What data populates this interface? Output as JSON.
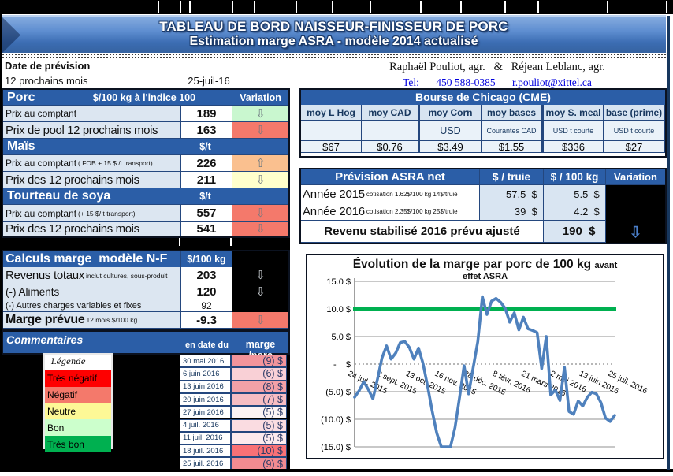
{
  "header": {
    "title_line1": "TABLEAU DE BORD NAISSEUR-FINISSEUR DE PORC",
    "title_line2": "Estimation marge ASRA - modèle 2014 actualisé"
  },
  "forecast": {
    "date_label": "Date de prévision",
    "period": "12 prochains mois",
    "date_value": "25-juil-16",
    "authors": "Raphaël Pouliot, agr.   &   Réjean Leblanc, agr.",
    "tel_label": "Tel:",
    "tel_number": "450 588-0385",
    "email": "r.pouliot@xittel.ca"
  },
  "price_table": {
    "variation_header": "Variation",
    "rows": [
      {
        "type": "head",
        "title": "Porc",
        "unit": "$/100 kg à l'indice 100"
      },
      {
        "type": "data",
        "size": "small",
        "label": "Prix au comptant",
        "note": "",
        "value": "189",
        "cell_color": "#C9F7CF",
        "arrow": "down"
      },
      {
        "type": "data",
        "size": "big",
        "label": "Prix de pool 12 prochains mois",
        "note": "",
        "value": "163",
        "cell_color": "#F4796B",
        "arrow": "down"
      },
      {
        "type": "head",
        "title": "Maïs",
        "unit": "$/t"
      },
      {
        "type": "data",
        "size": "small",
        "label": "Prix au comptant",
        "note": "( FOB + 15 $ /t transport)",
        "value": "226",
        "cell_color": "#FAC08F",
        "arrow": "up"
      },
      {
        "type": "data",
        "size": "big",
        "label": "Prix des 12 prochains mois",
        "note": "",
        "value": "211",
        "cell_color": "#FFFFCC",
        "arrow": "down"
      },
      {
        "type": "head",
        "title": "Tourteau de soya",
        "unit": "$/t"
      },
      {
        "type": "data",
        "size": "small",
        "label": "Prix au comptant",
        "note": "(+ 15 $/ t  transport)",
        "value": "557",
        "cell_color": "#F4796B",
        "arrow": "down"
      },
      {
        "type": "data",
        "size": "big",
        "label": "Prix des 12 prochains mois",
        "note": "",
        "value": "541",
        "cell_color": "#F4796B",
        "arrow": "down"
      }
    ]
  },
  "calc_table": {
    "title": "Calculs marge  modèle N-F",
    "unit": "$/100 kg",
    "rows": [
      {
        "label": "Revenus totaux",
        "note": "inclut cultures, sous-produit",
        "value": "203",
        "value_bold": true,
        "size": "big",
        "variation": "black",
        "arrow": "down"
      },
      {
        "label": "(-) Aliments",
        "note": "",
        "value": "120",
        "value_bold": true,
        "size": "mid",
        "variation": "black",
        "arrow": "down"
      },
      {
        "label": "(-) Autres charges variables et fixes",
        "note": "",
        "value": "92",
        "value_bold": false,
        "size": "small",
        "variation": "black",
        "arrow": ""
      },
      {
        "label": "Marge prévue",
        "note": "12 mois $/100 kg",
        "value": "-9.3",
        "value_bold": true,
        "size": "big2",
        "variation": "#F4796B",
        "arrow": "down"
      }
    ]
  },
  "comments": {
    "title": "Commentaires",
    "date_col": "en date du",
    "marge_col": "marge /porc",
    "rows": [
      {
        "date": "30 mai 2016",
        "marge": "(9) $",
        "color": "#F2949B"
      },
      {
        "date": "6 juin 2016",
        "marge": "(6) $",
        "color": "#F9D0D6"
      },
      {
        "date": "13 juin 2016",
        "marge": "(8) $",
        "color": "#F2A1A7"
      },
      {
        "date": "20 juin 2016",
        "marge": "(7) $",
        "color": "#F7BDC3"
      },
      {
        "date": "27 juin 2016",
        "marge": "(5) $",
        "color": "#FDF3F4"
      },
      {
        "date": "4 juil. 2016",
        "marge": "(5) $",
        "color": "#FADCE1"
      },
      {
        "date": "11 juil. 2016",
        "marge": "(5) $",
        "color": "#FCEAED"
      },
      {
        "date": "18 juil. 2016",
        "marge": "(10) $",
        "color": "#F97176"
      },
      {
        "date": "25 juil. 2016",
        "marge": "(9) $",
        "color": "#F28B91"
      }
    ]
  },
  "legend": {
    "title": "Légende",
    "items": [
      {
        "label": "Très négatif",
        "color": "#FE0000"
      },
      {
        "label": "Négatif",
        "color": "#F4796B"
      },
      {
        "label": "Neutre",
        "color": "#FDF896"
      },
      {
        "label": "Bon",
        "color": "#CCFFCC"
      },
      {
        "label": "Très bon",
        "color": "#00B050"
      }
    ]
  },
  "bourse": {
    "title": "Bourse de Chicago (CME)",
    "columns": [
      {
        "head": "moy L Hog",
        "sub": "",
        "value": "$67"
      },
      {
        "head": "moy CAD",
        "sub": "",
        "value": "$0.76"
      },
      {
        "head": "moy Corn",
        "sub": "USD",
        "value": "$3.49"
      },
      {
        "head": "moy bases",
        "sub": "Courantes CAD",
        "value": "$1.55"
      },
      {
        "head": "moy S. meal",
        "sub": "USD t courte",
        "value": "$336"
      },
      {
        "head": "base (prime)",
        "sub": "USD t courte",
        "value": "$27"
      }
    ]
  },
  "asra": {
    "title": "Prévision ASRA net",
    "truie_col": "$ / truie",
    "kg_col": "$ / 100 kg",
    "variation_col": "Variation",
    "rows": [
      {
        "label": "Année 2015",
        "note": "cotisation 1.62$/100 kg  14$/truie",
        "truie": "57.5  $  ",
        "kg": "5.5  $  "
      },
      {
        "label": "Année 2016",
        "note": "cotisation 2.35$/100 kg  25$/truie",
        "truie": "39  $  ",
        "kg": "4.2  $  "
      }
    ],
    "total_label": "Revenu stabilisé 2016 prévu ajusté",
    "total_value": "190  $   ",
    "total_arrow": "down"
  },
  "chart_data": {
    "type": "line",
    "title": "Évolution de la marge par porc de 100 kg",
    "title_suffix": "avant",
    "subtitle": "effet ASRA",
    "ylim": [
      -15,
      15
    ],
    "grid": true,
    "y_tick_labels": [
      "15.0 $",
      "10.0 $",
      "5.0 $",
      "-    $",
      "(5.0) $",
      "(10.0) $",
      "(15.0) $"
    ],
    "x_tick_labels": [
      "24 juil. 2015",
      "2 sept. 2015",
      "13 oct. 2015",
      "16 nov. 2015",
      "28 déc. 2015",
      "8 févr. 2016",
      "21 mars 2016",
      "2 mai 2016",
      "13 juin 2016",
      "25 juil. 2016"
    ],
    "reference_line": {
      "value": 10,
      "color": "#00B050"
    },
    "series": [
      {
        "name": "Marge par porc avant effet ASRA",
        "color": "#4F81BD",
        "values": [
          -6.0,
          -4.8,
          -3.2,
          -4.6,
          -6.3,
          -2.8,
          1.1,
          3.3,
          0.9,
          2.0,
          3.9,
          4.1,
          3.0,
          0.9,
          2.9,
          0.1,
          -4.0,
          -8.5,
          -12.5,
          -15.0,
          -15.2,
          -15.2,
          -11.5,
          -6.0,
          -0.3,
          -5.4,
          -0.6,
          4.1,
          12.2,
          9.0,
          11.4,
          11.9,
          11.2,
          10.1,
          7.6,
          9.3,
          6.2,
          8.5,
          6.4,
          6.1,
          5.7,
          -0.8,
          5.0,
          -5.6,
          -4.7,
          -6.6,
          -0.6,
          -8.6,
          -9.1,
          -6.7,
          -7.6,
          -6.0,
          -5.1,
          -5.4,
          -7.0,
          -9.8,
          -10.4,
          -9.3
        ]
      }
    ]
  }
}
